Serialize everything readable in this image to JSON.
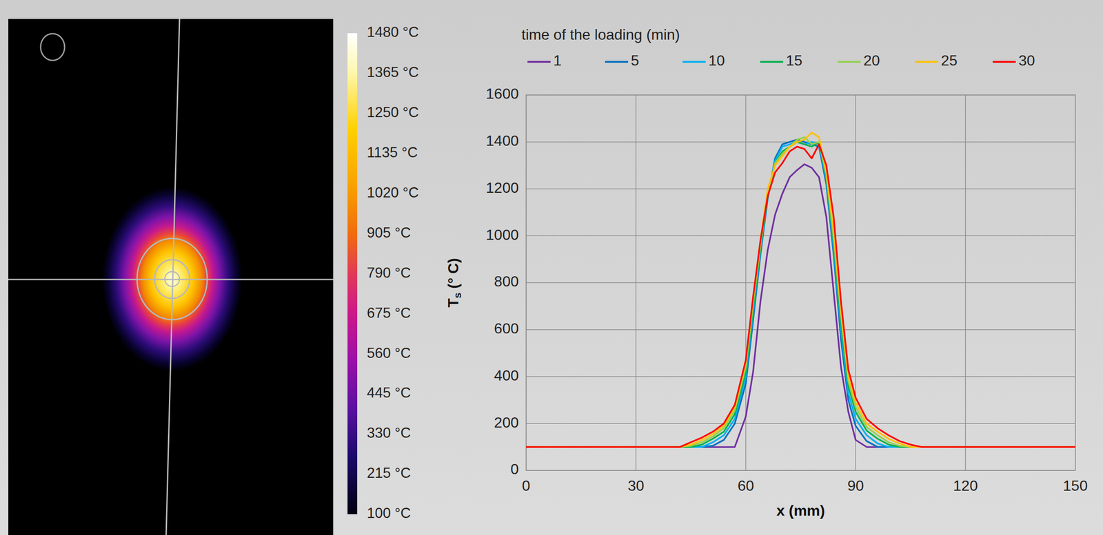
{
  "thermal_image": {
    "colorbar": {
      "range": [
        100,
        1480
      ],
      "ticks": [
        {
          "value": 1480,
          "label": "1480 °C"
        },
        {
          "value": 1365,
          "label": "1365 °C"
        },
        {
          "value": 1250,
          "label": "1250 °C"
        },
        {
          "value": 1135,
          "label": "1135 °C"
        },
        {
          "value": 1020,
          "label": "1020 °C"
        },
        {
          "value": 905,
          "label": "905 °C"
        },
        {
          "value": 790,
          "label": "790 °C"
        },
        {
          "value": 675,
          "label": "675 °C"
        },
        {
          "value": 560,
          "label": "560 °C"
        },
        {
          "value": 445,
          "label": "445 °C"
        },
        {
          "value": 330,
          "label": "330 °C"
        },
        {
          "value": 215,
          "label": "215 °C"
        },
        {
          "value": 100,
          "label": "100 °C"
        }
      ]
    }
  },
  "chart_data": {
    "type": "line",
    "legend_title": "time of the loading (min)",
    "x_label": "x (mm)",
    "y_label": "Ts (° C)",
    "x": [
      0,
      42,
      45,
      48,
      51,
      54,
      57,
      60,
      62,
      64,
      66,
      68,
      70,
      72,
      74,
      76,
      78,
      80,
      82,
      84,
      86,
      88,
      90,
      93,
      96,
      99,
      102,
      105,
      108,
      150
    ],
    "series": [
      {
        "name": "1",
        "color": "#7030a0",
        "values": [
          100,
          100,
          100,
          100,
          100,
          100,
          100,
          230,
          420,
          720,
          940,
          1090,
          1180,
          1250,
          1280,
          1305,
          1290,
          1250,
          1080,
          760,
          440,
          250,
          130,
          100,
          100,
          100,
          100,
          100,
          100,
          100
        ]
      },
      {
        "name": "5",
        "color": "#0070c0",
        "values": [
          100,
          100,
          100,
          100,
          105,
          130,
          200,
          370,
          640,
          920,
          1160,
          1330,
          1390,
          1400,
          1410,
          1400,
          1390,
          1380,
          1220,
          920,
          560,
          300,
          190,
          125,
          100,
          100,
          100,
          100,
          100,
          100
        ]
      },
      {
        "name": "10",
        "color": "#00b0f0",
        "values": [
          100,
          100,
          100,
          100,
          120,
          150,
          220,
          400,
          670,
          940,
          1170,
          1320,
          1380,
          1390,
          1400,
          1390,
          1400,
          1390,
          1240,
          950,
          600,
          330,
          220,
          150,
          115,
          100,
          100,
          100,
          100,
          100
        ]
      },
      {
        "name": "15",
        "color": "#00b050",
        "values": [
          100,
          100,
          100,
          110,
          135,
          165,
          240,
          420,
          690,
          950,
          1170,
          1310,
          1360,
          1380,
          1400,
          1390,
          1380,
          1400,
          1250,
          970,
          630,
          360,
          250,
          170,
          135,
          110,
          100,
          100,
          100,
          100
        ]
      },
      {
        "name": "20",
        "color": "#92d050",
        "values": [
          100,
          100,
          105,
          120,
          145,
          180,
          255,
          440,
          710,
          960,
          1180,
          1310,
          1350,
          1380,
          1410,
          1420,
          1390,
          1400,
          1260,
          990,
          660,
          380,
          270,
          185,
          150,
          120,
          105,
          100,
          100,
          100
        ]
      },
      {
        "name": "25",
        "color": "#ffc000",
        "values": [
          100,
          100,
          110,
          130,
          155,
          190,
          270,
          460,
          730,
          980,
          1200,
          1300,
          1340,
          1380,
          1400,
          1410,
          1440,
          1420,
          1270,
          1020,
          680,
          400,
          290,
          200,
          165,
          135,
          115,
          100,
          100,
          100
        ]
      },
      {
        "name": "30",
        "color": "#ff0000",
        "values": [
          100,
          100,
          120,
          140,
          165,
          200,
          280,
          470,
          740,
          980,
          1170,
          1270,
          1310,
          1360,
          1380,
          1370,
          1330,
          1390,
          1300,
          1080,
          720,
          430,
          310,
          220,
          180,
          150,
          125,
          110,
          100,
          100
        ]
      }
    ],
    "xlim": [
      0,
      150
    ],
    "xticks": [
      0,
      30,
      60,
      90,
      120,
      150
    ],
    "ylim": [
      0,
      1600
    ],
    "yticks": [
      0,
      200,
      400,
      600,
      800,
      1000,
      1200,
      1400,
      1600
    ],
    "grid": true,
    "legend": "top"
  }
}
